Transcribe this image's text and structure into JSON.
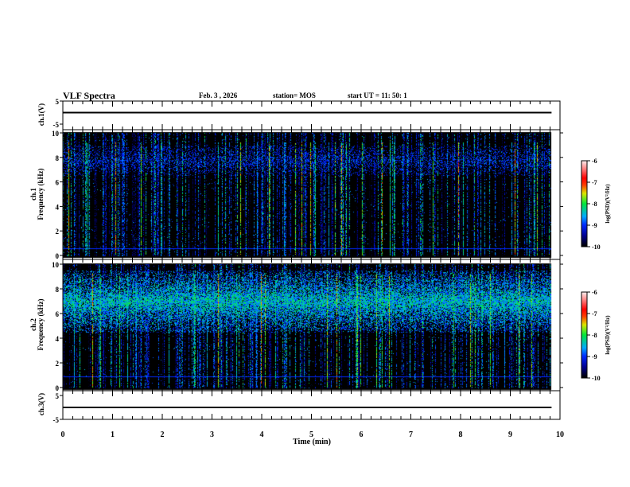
{
  "header": {
    "title": "VLF Spectra",
    "date": "Feb. 3  , 2026",
    "station": "station= MOS",
    "start": "start  UT =   11: 50: 1"
  },
  "chart_data": [
    {
      "type": "line",
      "name": "ch1-waveform",
      "ylabel": "ch.1(V)",
      "ylim": [
        -5,
        5
      ],
      "yticks": [
        "5",
        "-5"
      ],
      "x_end": 9.83,
      "value": 0
    },
    {
      "type": "heatmap",
      "name": "ch1-spectrogram",
      "ylabel": "ch.1\nFrequency (kHz)",
      "ylabel_parts": [
        "ch.1",
        "Frequency (kHz)"
      ],
      "ylim": [
        0,
        10
      ],
      "yticks": [
        "0",
        "2",
        "4",
        "6",
        "8",
        "10"
      ],
      "x_end": 9.83,
      "band_khz": [
        6.5,
        9
      ],
      "line_khz": 0.6,
      "band_strength": 0.35,
      "colorbar": {
        "label": "log(PSD)(V²/Hz)",
        "range": [
          -10,
          -6
        ],
        "ticks": [
          "-6",
          "-7",
          "-8",
          "-9",
          "-10"
        ]
      }
    },
    {
      "type": "heatmap",
      "name": "ch2-spectrogram",
      "ylabel_parts": [
        "ch.2",
        "Frequency (kHz)"
      ],
      "ylim": [
        0,
        10
      ],
      "yticks": [
        "0",
        "2",
        "4",
        "6",
        "8",
        "10"
      ],
      "x_end": 9.83,
      "band_khz": [
        4.5,
        9.5
      ],
      "line_khz": 0.9,
      "band_strength": 0.8,
      "colorbar": {
        "label": "log(PSD)(V²/Hz)",
        "range": [
          -10,
          -6
        ],
        "ticks": [
          "-6",
          "-7",
          "-8",
          "-9",
          "-10"
        ]
      }
    },
    {
      "type": "line",
      "name": "ch3-waveform",
      "ylabel": "ch.3(V)",
      "ylim": [
        -5,
        5
      ],
      "yticks": [
        "5",
        "-5"
      ],
      "x_end": 9.83,
      "value": 0
    }
  ],
  "xaxis": {
    "label": "Time  (min)",
    "range": [
      0,
      10
    ],
    "ticks": [
      "0",
      "1",
      "2",
      "3",
      "4",
      "5",
      "6",
      "7",
      "8",
      "9",
      "10"
    ]
  }
}
